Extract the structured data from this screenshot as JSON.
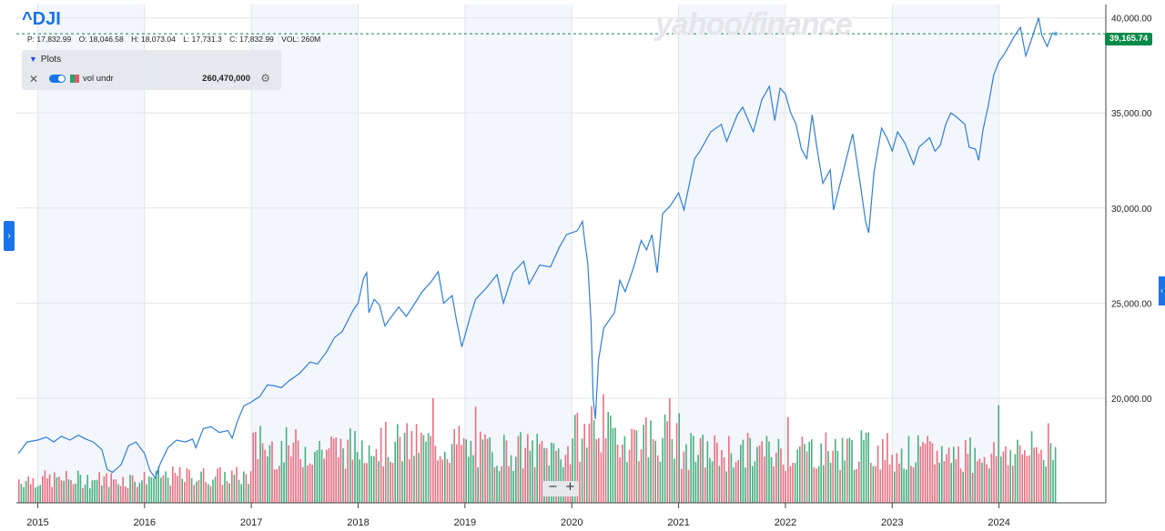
{
  "header": {
    "ticker": "^DJI",
    "logo": "yahoo/finance",
    "ohlc": {
      "prev": "P: 17,832.99",
      "open": "O: 18,046.58",
      "high": "H: 18,073.04",
      "low": "L: 17,731.3",
      "close": "C: 17,832.99",
      "volume": "VOL: 260M"
    }
  },
  "plots_panel": {
    "title": "Plots",
    "indicator_label": "vol undr",
    "indicator_value": "260,470,000",
    "icons": [
      "close-icon",
      "toggle-switch",
      "gear-icon"
    ]
  },
  "current_price_label": "39,165.74",
  "controls": {
    "zoom_out": "−",
    "zoom_in": "+"
  },
  "colors": {
    "line": "#2f7ed8",
    "volume_up": "#29a36a",
    "volume_down": "#e8566b",
    "price_badge": "#0a8a4a",
    "accent": "#1a73e8",
    "shade_band": "#f3f6fa"
  },
  "chart_data": {
    "type": "line",
    "title": "^DJI",
    "xlabel": "",
    "ylabel": "",
    "x_ticks": [
      "2015",
      "2016",
      "2017",
      "2018",
      "2019",
      "2020",
      "2021",
      "2022",
      "2023",
      "2024"
    ],
    "y_ticks": [
      "20,000.00",
      "25,000.00",
      "30,000.00",
      "35,000.00",
      "40,000.00"
    ],
    "ylim": [
      14500,
      40700
    ],
    "xlim": [
      2014.8,
      2025.0
    ],
    "grid": true,
    "series": [
      {
        "name": "^DJI",
        "points": [
          [
            2014.82,
            17100
          ],
          [
            2014.9,
            17700
          ],
          [
            2015.0,
            17800
          ],
          [
            2015.08,
            17950
          ],
          [
            2015.15,
            17700
          ],
          [
            2015.22,
            18000
          ],
          [
            2015.3,
            17800
          ],
          [
            2015.38,
            18050
          ],
          [
            2015.45,
            17850
          ],
          [
            2015.52,
            17700
          ],
          [
            2015.6,
            17300
          ],
          [
            2015.65,
            16250
          ],
          [
            2015.7,
            16100
          ],
          [
            2015.78,
            16500
          ],
          [
            2015.85,
            17500
          ],
          [
            2015.92,
            17700
          ],
          [
            2016.0,
            17100
          ],
          [
            2016.05,
            16200
          ],
          [
            2016.1,
            15800
          ],
          [
            2016.15,
            16600
          ],
          [
            2016.22,
            17400
          ],
          [
            2016.3,
            17800
          ],
          [
            2016.38,
            17700
          ],
          [
            2016.45,
            17850
          ],
          [
            2016.48,
            17400
          ],
          [
            2016.55,
            18400
          ],
          [
            2016.62,
            18500
          ],
          [
            2016.7,
            18200
          ],
          [
            2016.78,
            18300
          ],
          [
            2016.82,
            17900
          ],
          [
            2016.87,
            18800
          ],
          [
            2016.93,
            19600
          ],
          [
            2017.0,
            19800
          ],
          [
            2017.08,
            20100
          ],
          [
            2017.15,
            20700
          ],
          [
            2017.22,
            20650
          ],
          [
            2017.28,
            20550
          ],
          [
            2017.35,
            20900
          ],
          [
            2017.45,
            21300
          ],
          [
            2017.55,
            21900
          ],
          [
            2017.62,
            21800
          ],
          [
            2017.7,
            22400
          ],
          [
            2017.78,
            23200
          ],
          [
            2017.85,
            23500
          ],
          [
            2017.95,
            24600
          ],
          [
            2018.0,
            25000
          ],
          [
            2018.05,
            26300
          ],
          [
            2018.08,
            26600
          ],
          [
            2018.1,
            24500
          ],
          [
            2018.15,
            25200
          ],
          [
            2018.2,
            24900
          ],
          [
            2018.25,
            23800
          ],
          [
            2018.3,
            24200
          ],
          [
            2018.38,
            24800
          ],
          [
            2018.45,
            24300
          ],
          [
            2018.52,
            24900
          ],
          [
            2018.6,
            25600
          ],
          [
            2018.68,
            26100
          ],
          [
            2018.75,
            26650
          ],
          [
            2018.8,
            25000
          ],
          [
            2018.88,
            25400
          ],
          [
            2018.92,
            24100
          ],
          [
            2018.97,
            22700
          ],
          [
            2019.0,
            23300
          ],
          [
            2019.05,
            24300
          ],
          [
            2019.1,
            25200
          ],
          [
            2019.2,
            25800
          ],
          [
            2019.3,
            26500
          ],
          [
            2019.36,
            25000
          ],
          [
            2019.45,
            26600
          ],
          [
            2019.55,
            27200
          ],
          [
            2019.6,
            26000
          ],
          [
            2019.7,
            27000
          ],
          [
            2019.8,
            26900
          ],
          [
            2019.88,
            27900
          ],
          [
            2019.95,
            28600
          ],
          [
            2020.05,
            28800
          ],
          [
            2020.1,
            29300
          ],
          [
            2020.12,
            28300
          ],
          [
            2020.15,
            27100
          ],
          [
            2020.18,
            24000
          ],
          [
            2020.2,
            20000
          ],
          [
            2020.22,
            18900
          ],
          [
            2020.25,
            22000
          ],
          [
            2020.3,
            23700
          ],
          [
            2020.4,
            24500
          ],
          [
            2020.45,
            26200
          ],
          [
            2020.5,
            25600
          ],
          [
            2020.58,
            26900
          ],
          [
            2020.65,
            28300
          ],
          [
            2020.7,
            27800
          ],
          [
            2020.75,
            28600
          ],
          [
            2020.8,
            26600
          ],
          [
            2020.85,
            29700
          ],
          [
            2020.92,
            30100
          ],
          [
            2021.0,
            30800
          ],
          [
            2021.05,
            29900
          ],
          [
            2021.15,
            32600
          ],
          [
            2021.2,
            33000
          ],
          [
            2021.3,
            34000
          ],
          [
            2021.4,
            34400
          ],
          [
            2021.45,
            33500
          ],
          [
            2021.55,
            34900
          ],
          [
            2021.6,
            35300
          ],
          [
            2021.7,
            34000
          ],
          [
            2021.78,
            35700
          ],
          [
            2021.85,
            36400
          ],
          [
            2021.9,
            34600
          ],
          [
            2021.95,
            36300
          ],
          [
            2022.0,
            36000
          ],
          [
            2022.05,
            35000
          ],
          [
            2022.1,
            34400
          ],
          [
            2022.15,
            33100
          ],
          [
            2022.2,
            32600
          ],
          [
            2022.25,
            34900
          ],
          [
            2022.3,
            33000
          ],
          [
            2022.35,
            31300
          ],
          [
            2022.42,
            32000
          ],
          [
            2022.45,
            29900
          ],
          [
            2022.5,
            31000
          ],
          [
            2022.58,
            32800
          ],
          [
            2022.63,
            33900
          ],
          [
            2022.7,
            31300
          ],
          [
            2022.75,
            29300
          ],
          [
            2022.78,
            28700
          ],
          [
            2022.83,
            31900
          ],
          [
            2022.9,
            34200
          ],
          [
            2022.95,
            33700
          ],
          [
            2023.0,
            33000
          ],
          [
            2023.05,
            34000
          ],
          [
            2023.12,
            33400
          ],
          [
            2023.2,
            32300
          ],
          [
            2023.25,
            33200
          ],
          [
            2023.35,
            33700
          ],
          [
            2023.4,
            33000
          ],
          [
            2023.45,
            33300
          ],
          [
            2023.5,
            34400
          ],
          [
            2023.55,
            35000
          ],
          [
            2023.6,
            34800
          ],
          [
            2023.68,
            34400
          ],
          [
            2023.72,
            33200
          ],
          [
            2023.78,
            33100
          ],
          [
            2023.81,
            32500
          ],
          [
            2023.85,
            34100
          ],
          [
            2023.9,
            35400
          ],
          [
            2023.95,
            37000
          ],
          [
            2024.0,
            37700
          ],
          [
            2024.05,
            38100
          ],
          [
            2024.1,
            38600
          ],
          [
            2024.15,
            39100
          ],
          [
            2024.2,
            39500
          ],
          [
            2024.25,
            38000
          ],
          [
            2024.3,
            38800
          ],
          [
            2024.37,
            40000
          ],
          [
            2024.4,
            39100
          ],
          [
            2024.45,
            38500
          ],
          [
            2024.5,
            39200
          ],
          [
            2024.53,
            39165
          ]
        ]
      }
    ],
    "volume": {
      "name": "vol undr",
      "max_label": "260,470,000",
      "periods": [
        "2015",
        "2016",
        "2017",
        "2018",
        "2019",
        "2020",
        "2021",
        "2022",
        "2023",
        "2024"
      ],
      "avg_relative_height": [
        0.25,
        0.28,
        0.58,
        0.62,
        0.55,
        0.7,
        0.54,
        0.56,
        0.52,
        0.55
      ]
    }
  }
}
